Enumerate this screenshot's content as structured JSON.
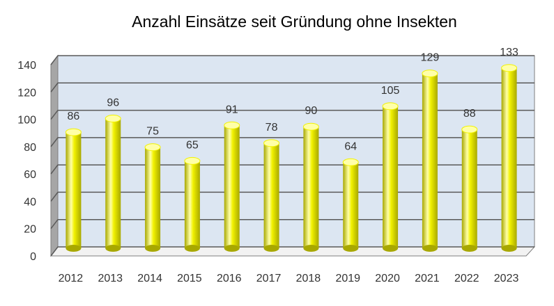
{
  "chart_data": {
    "type": "bar",
    "title": "Anzahl Einsätze seit Gründung ohne Insekten",
    "categories": [
      "2012",
      "2013",
      "2014",
      "2015",
      "2016",
      "2017",
      "2018",
      "2019",
      "2020",
      "2021",
      "2022",
      "2023"
    ],
    "values": [
      86,
      96,
      75,
      65,
      91,
      78,
      90,
      64,
      105,
      129,
      88,
      133
    ],
    "ylim": [
      0,
      140
    ],
    "yticks": [
      0,
      20,
      40,
      60,
      80,
      100,
      120,
      140
    ],
    "grid": true,
    "data_labels": true,
    "colors": {
      "bar": "#f2f200",
      "bar_highlight": "#ffffa8",
      "bar_shadow": "#a8a800",
      "plot_background": "#dce6f2",
      "side_wall": "#a6a6a6",
      "gridline": "#595959"
    }
  }
}
